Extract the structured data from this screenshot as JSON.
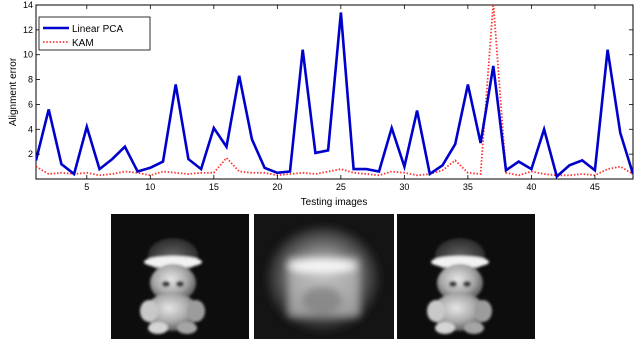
{
  "chart_data": {
    "type": "line",
    "title": "",
    "xlabel": "Testing images",
    "ylabel": "Alignment error",
    "xlim": [
      1,
      48
    ],
    "ylim": [
      0,
      14
    ],
    "xticks": [
      5,
      10,
      15,
      20,
      25,
      30,
      35,
      40,
      45
    ],
    "yticks": [
      2,
      4,
      6,
      8,
      10,
      12,
      14
    ],
    "grid": false,
    "legend_position": "top-left",
    "x": [
      1,
      2,
      3,
      4,
      5,
      6,
      7,
      8,
      9,
      10,
      11,
      12,
      13,
      14,
      15,
      16,
      17,
      18,
      19,
      20,
      21,
      22,
      23,
      24,
      25,
      26,
      27,
      28,
      29,
      30,
      31,
      32,
      33,
      34,
      35,
      36,
      37,
      38,
      39,
      40,
      41,
      42,
      43,
      44,
      45,
      46,
      47,
      48
    ],
    "series": [
      {
        "name": "Linear PCA",
        "color": "#0000cc",
        "style": "solid",
        "values": [
          1.5,
          5.6,
          1.2,
          0.4,
          4.2,
          0.8,
          1.6,
          2.6,
          0.6,
          0.9,
          1.4,
          7.6,
          1.6,
          0.8,
          4.1,
          2.6,
          8.3,
          3.2,
          0.9,
          0.5,
          0.6,
          10.4,
          2.1,
          2.3,
          13.4,
          0.8,
          0.8,
          0.6,
          4.1,
          1.0,
          5.5,
          0.4,
          1.1,
          2.8,
          7.6,
          2.9,
          9.1,
          0.7,
          1.4,
          0.8,
          4.0,
          0.2,
          1.1,
          1.5,
          0.7,
          10.4,
          3.7,
          0.4
        ]
      },
      {
        "name": "KAM",
        "color": "#ff3333",
        "style": "dotted",
        "values": [
          1.0,
          0.4,
          0.5,
          0.4,
          0.5,
          0.3,
          0.4,
          0.6,
          0.5,
          0.3,
          0.6,
          0.5,
          0.4,
          0.5,
          0.5,
          1.7,
          0.6,
          0.5,
          0.5,
          0.3,
          0.4,
          0.5,
          0.4,
          0.6,
          0.8,
          0.5,
          0.4,
          0.3,
          0.6,
          0.5,
          0.3,
          0.4,
          0.7,
          1.5,
          0.5,
          0.4,
          14.2,
          0.5,
          0.3,
          0.6,
          0.4,
          0.3,
          0.3,
          0.4,
          0.3,
          0.8,
          1.0,
          0.4
        ]
      }
    ]
  }
}
